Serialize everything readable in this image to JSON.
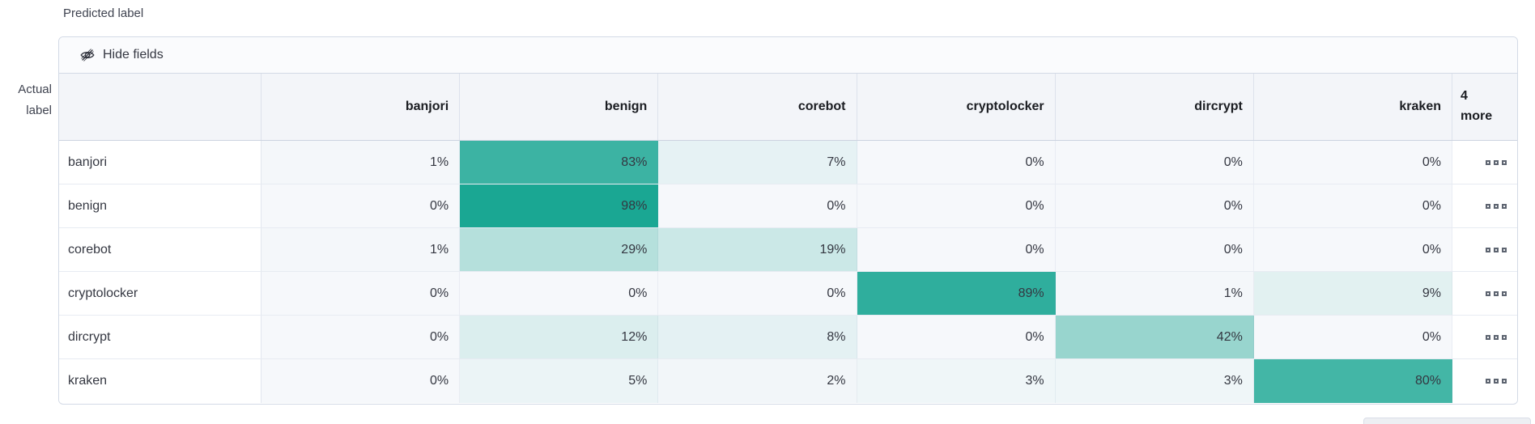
{
  "axis": {
    "predicted": "Predicted label",
    "actual_line1": "Actual",
    "actual_line2": "label"
  },
  "toolbar": {
    "hide_fields": "Hide fields",
    "icon": "eye-closed-icon"
  },
  "grid": {
    "columns": [
      "banjori",
      "benign",
      "corebot",
      "cryptolocker",
      "dircrypt",
      "kraken"
    ],
    "more_column": {
      "line1": "4",
      "line2": "more"
    },
    "rows": [
      {
        "label": "banjori",
        "values": [
          1,
          83,
          7,
          0,
          0,
          0
        ]
      },
      {
        "label": "benign",
        "values": [
          0,
          98,
          0,
          0,
          0,
          0
        ]
      },
      {
        "label": "corebot",
        "values": [
          1,
          29,
          19,
          0,
          0,
          0
        ]
      },
      {
        "label": "cryptolocker",
        "values": [
          0,
          0,
          0,
          89,
          1,
          9
        ]
      },
      {
        "label": "dircrypt",
        "values": [
          0,
          12,
          8,
          0,
          42,
          0
        ]
      },
      {
        "label": "kraken",
        "values": [
          0,
          5,
          2,
          3,
          3,
          80
        ]
      }
    ],
    "value_suffix": "%",
    "actions_icon": "boxes-horizontal-icon"
  },
  "colors": {
    "accent": "#16a591",
    "cell_base": "#f6f8fb",
    "header_bg": "#f3f5f9",
    "panel_border": "#d3dae6",
    "row_border": "#e7ebf2",
    "text": "#343741"
  },
  "chart_data": {
    "type": "heatmap",
    "xlabel": "Predicted label",
    "ylabel": "Actual label",
    "x_categories": [
      "banjori",
      "benign",
      "corebot",
      "cryptolocker",
      "dircrypt",
      "kraken"
    ],
    "y_categories": [
      "banjori",
      "benign",
      "corebot",
      "cryptolocker",
      "dircrypt",
      "kraken"
    ],
    "values_percent": [
      [
        1,
        83,
        7,
        0,
        0,
        0
      ],
      [
        0,
        98,
        0,
        0,
        0,
        0
      ],
      [
        1,
        29,
        19,
        0,
        0,
        0
      ],
      [
        0,
        0,
        0,
        89,
        1,
        9
      ],
      [
        0,
        12,
        8,
        0,
        42,
        0
      ],
      [
        0,
        5,
        2,
        3,
        3,
        80
      ]
    ],
    "hidden_columns_note": "4 more",
    "color_scale": {
      "min_color": "#f6f8fb",
      "max_color": "#16a591",
      "range": [
        0,
        100
      ]
    }
  }
}
